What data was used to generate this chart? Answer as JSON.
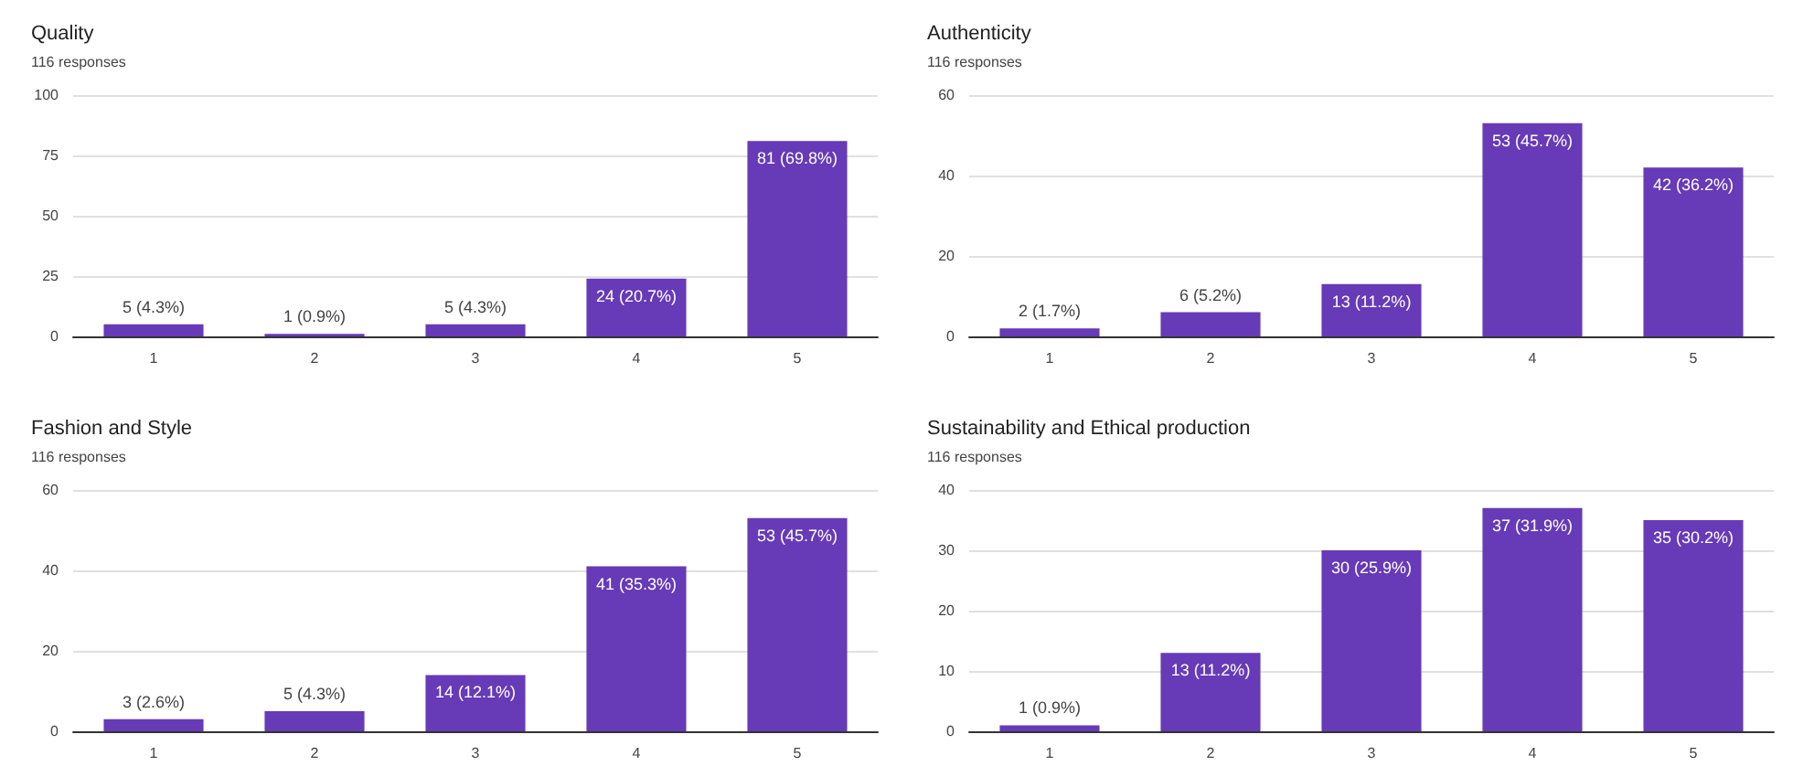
{
  "chart_data": [
    {
      "type": "bar",
      "title": "Quality",
      "subtitle": "116 responses",
      "categories": [
        "1",
        "2",
        "3",
        "4",
        "5"
      ],
      "values": [
        5,
        1,
        5,
        24,
        81
      ],
      "value_labels": [
        "5 (4.3%)",
        "1 (0.9%)",
        "5 (4.3%)",
        "24 (20.7%)",
        "81 (69.8%)"
      ],
      "color": "#673ab7",
      "ylim": [
        0,
        100
      ],
      "yticks": [
        0,
        25,
        50,
        75,
        100
      ],
      "grid": "y"
    },
    {
      "type": "bar",
      "title": "Authenticity",
      "subtitle": "116 responses",
      "categories": [
        "1",
        "2",
        "3",
        "4",
        "5"
      ],
      "values": [
        2,
        6,
        13,
        53,
        42
      ],
      "value_labels": [
        "2 (1.7%)",
        "6 (5.2%)",
        "13 (11.2%)",
        "53 (45.7%)",
        "42 (36.2%)"
      ],
      "color": "#673ab7",
      "ylim": [
        0,
        60
      ],
      "yticks": [
        0,
        20,
        40,
        60
      ],
      "grid": "y"
    },
    {
      "type": "bar",
      "title": "Fashion and Style",
      "subtitle": "116 responses",
      "categories": [
        "1",
        "2",
        "3",
        "4",
        "5"
      ],
      "values": [
        3,
        5,
        14,
        41,
        53
      ],
      "value_labels": [
        "3 (2.6%)",
        "5 (4.3%)",
        "14 (12.1%)",
        "41 (35.3%)",
        "53 (45.7%)"
      ],
      "color": "#673ab7",
      "ylim": [
        0,
        60
      ],
      "yticks": [
        0,
        20,
        40,
        60
      ],
      "grid": "y"
    },
    {
      "type": "bar",
      "title": "Sustainability and Ethical production",
      "subtitle": "116 responses",
      "categories": [
        "1",
        "2",
        "3",
        "4",
        "5"
      ],
      "values": [
        1,
        13,
        30,
        37,
        35
      ],
      "value_labels": [
        "1 (0.9%)",
        "13 (11.2%)",
        "30 (25.9%)",
        "37 (31.9%)",
        "35 (30.2%)"
      ],
      "color": "#673ab7",
      "ylim": [
        0,
        40
      ],
      "yticks": [
        0,
        10,
        20,
        30,
        40
      ],
      "grid": "y"
    }
  ]
}
